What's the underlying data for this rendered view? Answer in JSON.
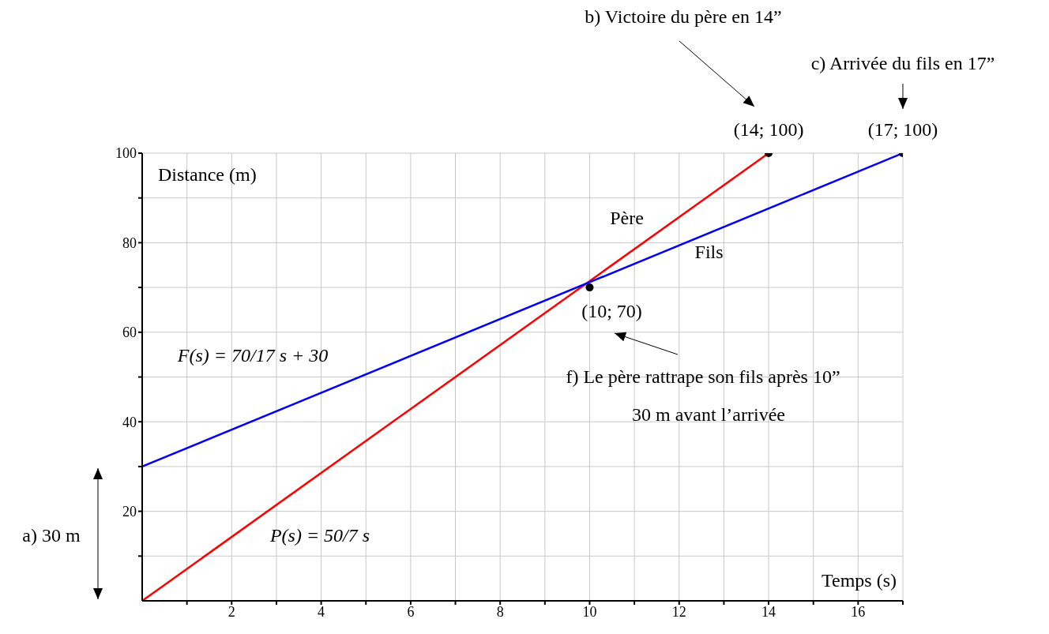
{
  "chart_data": {
    "type": "line",
    "xlabel": "Temps (s)",
    "ylabel": "Distance (m)",
    "xlim": [
      0,
      17
    ],
    "xticks": [
      {
        "value": 1,
        "label": null
      },
      2,
      {
        "value": 3,
        "label": null
      },
      4,
      {
        "value": 5,
        "label": null
      },
      6,
      {
        "value": 7,
        "label": null
      },
      8,
      {
        "value": 9,
        "label": null
      },
      10,
      {
        "value": 11,
        "label": null
      },
      12,
      {
        "value": 13,
        "label": null
      },
      14,
      {
        "value": 15,
        "label": null
      },
      16,
      {
        "value": 17,
        "label": null
      }
    ],
    "ylim": [
      0,
      100
    ],
    "yticks": [
      {
        "value": 10,
        "label": null
      },
      20,
      {
        "value": 30,
        "label": null
      },
      40,
      {
        "value": 50,
        "label": null
      },
      60,
      {
        "value": 70,
        "label": null
      },
      80,
      {
        "value": 90,
        "label": null
      },
      100
    ],
    "grid": true,
    "line_style": "solid",
    "marker": "none",
    "series": [
      {
        "name": "Père",
        "color": "#ff0000",
        "x": [
          0,
          14
        ],
        "values": [
          0,
          100
        ]
      },
      {
        "name": "Fils",
        "color": "#0000ff",
        "x": [
          0,
          17
        ],
        "values": [
          30,
          100
        ]
      },
      {
        "type": "scatter",
        "color": "#000000",
        "marker": "circle",
        "x": [
          10,
          14,
          17
        ],
        "values": [
          70,
          100,
          100
        ]
      }
    ],
    "annotations": [
      "b)  Victoire du père en 14”",
      "c)  Arrivée du fils en 17”",
      {
        "text": "(14; 100)",
        "x": 14,
        "y": 100
      },
      {
        "text": "(17; 100)",
        "x": 17,
        "y": 100
      },
      {
        "text": "(10; 70)",
        "x": 10,
        "y": 70
      },
      "f)  Le père rattrape son fils après 10”",
      "30 m avant l’arrivée",
      "a)  30 m",
      "F(s) = 70/17 s + 30",
      "P(s) = 50/7 s"
    ]
  }
}
